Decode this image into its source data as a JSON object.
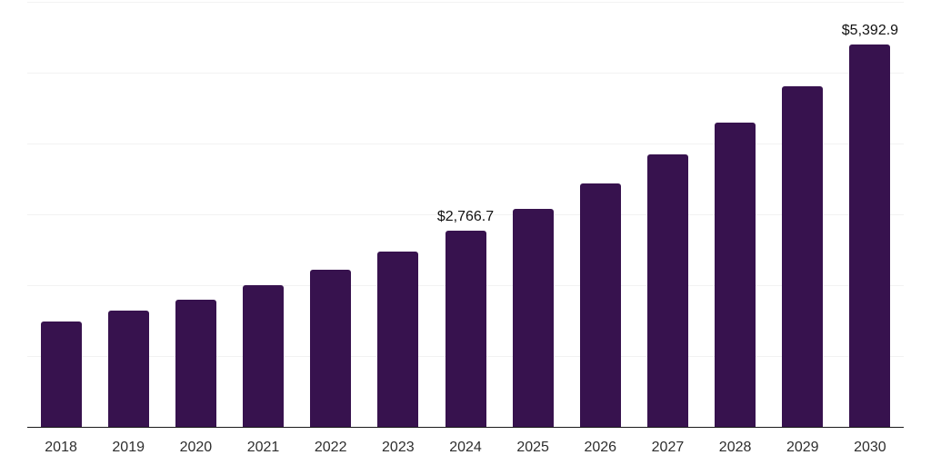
{
  "chart_data": {
    "type": "bar",
    "title": "",
    "xlabel": "",
    "ylabel": "",
    "categories": [
      "2018",
      "2019",
      "2020",
      "2021",
      "2022",
      "2023",
      "2024",
      "2025",
      "2026",
      "2027",
      "2028",
      "2029",
      "2030"
    ],
    "values": [
      1490,
      1645,
      1800,
      2000,
      2220,
      2475,
      2766.7,
      3075,
      3440,
      3850,
      4295,
      4805,
      5392.9
    ],
    "data_labels": [
      {
        "category": "2024",
        "text": "$2,766.7"
      },
      {
        "category": "2030",
        "text": "$5,392.9"
      }
    ],
    "ylim": [
      0,
      6000
    ],
    "gridline_step": 1000,
    "grid": true,
    "legend_position": "none",
    "y_axis_labels_visible": false,
    "x_axis_labels_visible": true
  },
  "colors": {
    "background": "#ffffff",
    "bar": "#37124E",
    "gridline": "#f2f2f2",
    "axis_line": "#1a1a1a",
    "tick_label": "#2e2e2e",
    "data_label": "#111111"
  }
}
